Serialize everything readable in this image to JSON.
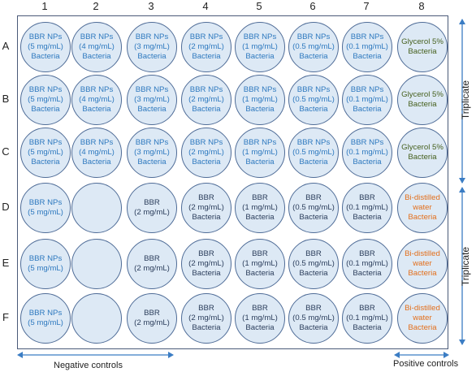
{
  "columns": [
    "1",
    "2",
    "3",
    "4",
    "5",
    "6",
    "7",
    "8"
  ],
  "rows": [
    "A",
    "B",
    "C",
    "D",
    "E",
    "F"
  ],
  "wells": [
    [
      "BBR NPs\n(5 mg/mL)\nBacteria",
      "BBR NPs\n(4 mg/mL)\nBacteria",
      "BBR NPs\n(3 mg/mL)\nBacteria",
      "BBR NPs\n(2 mg/mL)\nBacteria",
      "BBR NPs\n(1 mg/mL)\nBacteria",
      "BBR NPs\n(0.5 mg/mL)\nBacteria",
      "BBR NPs\n(0.1 mg/mL)\nBacteria",
      "Glycerol 5%\nBacteria"
    ],
    [
      "BBR NPs\n(5 mg/mL)\nBacteria",
      "BBR NPs\n(4 mg/mL)\nBacteria",
      "BBR NPs\n(3 mg/mL)\nBacteria",
      "BBR NPs\n(2 mg/mL)\nBacteria",
      "BBR NPs\n(1 mg/mL)\nBacteria",
      "BBR NPs\n(0.5 mg/mL)\nBacteria",
      "BBR NPs\n(0.1 mg/mL)\nBacteria",
      "Glycerol 5%\nBacteria"
    ],
    [
      "BBR NPs\n(5 mg/mL)\nBacteria",
      "BBR NPs\n(4 mg/mL)\nBacteria",
      "BBR NPs\n(3 mg/mL)\nBacteria",
      "BBR NPs\n(2 mg/mL)\nBacteria",
      "BBR NPs\n(1 mg/mL)\nBacteria",
      "BBR NPs\n(0.5 mg/mL)\nBacteria",
      "BBR NPs\n(0.1 mg/mL)\nBacteria",
      "Glycerol 5%\nBacteria"
    ],
    [
      "BBR NPs\n(5 mg/mL)",
      "",
      "BBR\n(2 mg/mL)",
      "BBR\n(2 mg/mL)\nBacteria",
      "BBR\n(1 mg/mL)\nBacteria",
      "BBR\n(0.5 mg/mL)\nBacteria",
      "BBR\n(0.1 mg/mL)\nBacteria",
      "Bi-distilled\nwater\nBacteria"
    ],
    [
      "BBR NPs\n(5 mg/mL)",
      "",
      "BBR\n(2 mg/mL)",
      "BBR\n(2 mg/mL)\nBacteria",
      "BBR\n(1 mg/mL)\nBacteria",
      "BBR\n(0.5 mg/mL)\nBacteria",
      "BBR\n(0.1 mg/mL)\nBacteria",
      "Bi-distilled\nwater\nBacteria"
    ],
    [
      "BBR NPs\n(5 mg/mL)",
      "",
      "BBR\n(2 mg/mL)",
      "BBR\n(2 mg/mL)\nBacteria",
      "BBR\n(1 mg/mL)\nBacteria",
      "BBR\n(0.5 mg/mL)\nBacteria",
      "BBR\n(0.1 mg/mL)\nBacteria",
      "Bi-distilled\nwater\nBacteria"
    ]
  ],
  "annotations": {
    "triplicate_top": "Triplicate",
    "triplicate_bottom": "Triplicate",
    "negative_controls": "Negative controls",
    "positive_controls": "Positive controls"
  },
  "colors": {
    "well_fill": "#dde9f5",
    "well_border": "#4f6c97",
    "arrow": "#3b7dc4",
    "label_blue": "#2e79bf",
    "label_dark": "#2c3e5c",
    "label_green": "#46601e",
    "label_orange": "#e36f1c"
  }
}
